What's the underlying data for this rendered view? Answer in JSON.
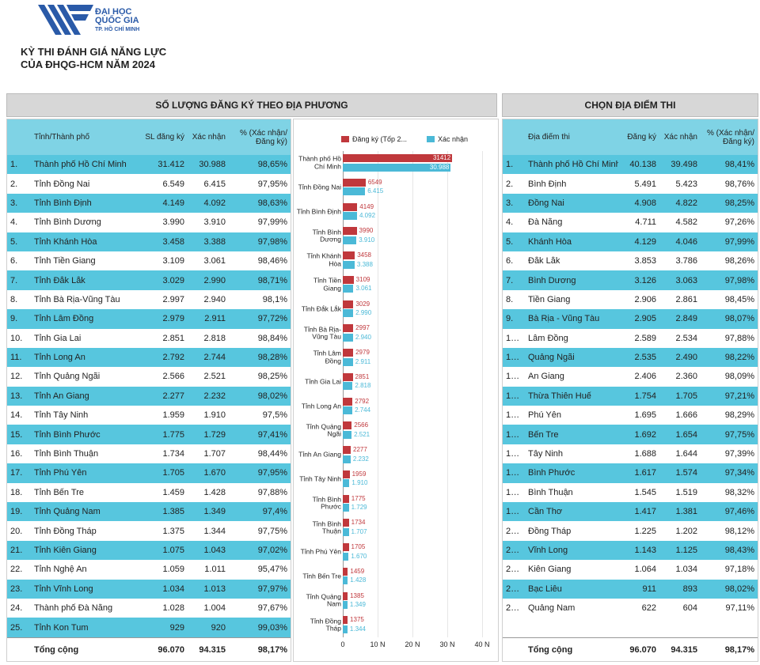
{
  "header": {
    "org_lines": [
      "ĐẠI HỌC",
      "QUỐC GIA",
      "TP. HỒ CHÍ MINH"
    ],
    "title_lines": [
      "KỲ THI ĐÁNH GIÁ NĂNG LỰC",
      "CỦA ĐHQG-HCM NĂM 2024"
    ]
  },
  "left_panel": {
    "title": "SỐ LƯỢNG ĐĂNG KÝ THEO ĐỊA PHƯƠNG",
    "table": {
      "columns": [
        "Tỉnh/Thành phố",
        "SL đăng ký",
        "Xác nhận",
        "% (Xác nhận/ Đăng ký)"
      ],
      "rows": [
        [
          "1.",
          "Thành phố Hồ Chí Minh",
          "31.412",
          "30.988",
          "98,65%"
        ],
        [
          "2.",
          "Tỉnh Đồng Nai",
          "6.549",
          "6.415",
          "97,95%"
        ],
        [
          "3.",
          "Tỉnh Bình Định",
          "4.149",
          "4.092",
          "98,63%"
        ],
        [
          "4.",
          "Tỉnh Bình Dương",
          "3.990",
          "3.910",
          "97,99%"
        ],
        [
          "5.",
          "Tỉnh Khánh Hòa",
          "3.458",
          "3.388",
          "97,98%"
        ],
        [
          "6.",
          "Tỉnh Tiền Giang",
          "3.109",
          "3.061",
          "98,46%"
        ],
        [
          "7.",
          "Tỉnh Đắk Lắk",
          "3.029",
          "2.990",
          "98,71%"
        ],
        [
          "8.",
          "Tỉnh Bà Rịa-Vũng Tàu",
          "2.997",
          "2.940",
          "98,1%"
        ],
        [
          "9.",
          "Tỉnh Lâm Đồng",
          "2.979",
          "2.911",
          "97,72%"
        ],
        [
          "10.",
          "Tỉnh Gia Lai",
          "2.851",
          "2.818",
          "98,84%"
        ],
        [
          "11.",
          "Tỉnh Long An",
          "2.792",
          "2.744",
          "98,28%"
        ],
        [
          "12.",
          "Tỉnh Quảng Ngãi",
          "2.566",
          "2.521",
          "98,25%"
        ],
        [
          "13.",
          "Tỉnh An Giang",
          "2.277",
          "2.232",
          "98,02%"
        ],
        [
          "14.",
          "Tỉnh Tây Ninh",
          "1.959",
          "1.910",
          "97,5%"
        ],
        [
          "15.",
          "Tỉnh Bình Phước",
          "1.775",
          "1.729",
          "97,41%"
        ],
        [
          "16.",
          "Tỉnh Bình Thuận",
          "1.734",
          "1.707",
          "98,44%"
        ],
        [
          "17.",
          "Tỉnh Phú Yên",
          "1.705",
          "1.670",
          "97,95%"
        ],
        [
          "18.",
          "Tỉnh Bến Tre",
          "1.459",
          "1.428",
          "97,88%"
        ],
        [
          "19.",
          "Tỉnh Quảng Nam",
          "1.385",
          "1.349",
          "97,4%"
        ],
        [
          "20.",
          "Tỉnh Đồng Tháp",
          "1.375",
          "1.344",
          "97,75%"
        ],
        [
          "21.",
          "Tỉnh Kiên Giang",
          "1.075",
          "1.043",
          "97,02%"
        ],
        [
          "22.",
          "Tỉnh Nghệ An",
          "1.059",
          "1.011",
          "95,47%"
        ],
        [
          "23.",
          "Tỉnh Vĩnh Long",
          "1.034",
          "1.013",
          "97,97%"
        ],
        [
          "24.",
          "Thành phố Đà Nẵng",
          "1.028",
          "1.004",
          "97,67%"
        ],
        [
          "25.",
          "Tỉnh Kon Tum",
          "929",
          "920",
          "99,03%"
        ]
      ],
      "total": [
        "Tổng cộng",
        "96.070",
        "94.315",
        "98,17%"
      ]
    }
  },
  "chart_data": {
    "type": "bar",
    "orientation": "horizontal",
    "categories": [
      "Thành phố Hồ Chí Minh",
      "Tỉnh Đồng Nai",
      "Tỉnh Bình Định",
      "Tỉnh Bình Dương",
      "Tỉnh Khánh Hòa",
      "Tỉnh Tiền Giang",
      "Tỉnh Đắk Lắk",
      "Tỉnh Bà Rịa-Vũng Tàu",
      "Tỉnh Lâm Đồng",
      "Tỉnh Gia Lai",
      "Tỉnh Long An",
      "Tỉnh Quảng Ngãi",
      "Tỉnh An Giang",
      "Tỉnh Tây Ninh",
      "Tỉnh Bình Phước",
      "Tỉnh Bình Thuận",
      "Tỉnh Phú Yên",
      "Tỉnh Bến Tre",
      "Tỉnh Quảng Nam",
      "Tỉnh Đồng Tháp"
    ],
    "series": [
      {
        "name": "Đăng ký (Tốp 2...",
        "color": "#c0383c",
        "values": [
          31412,
          6549,
          4149,
          3990,
          3458,
          3109,
          3029,
          2997,
          2979,
          2851,
          2792,
          2566,
          2277,
          1959,
          1775,
          1734,
          1705,
          1459,
          1385,
          1375
        ]
      },
      {
        "name": "Xác nhận",
        "color": "#4bb9d7",
        "values": [
          30988,
          6415,
          4092,
          3910,
          3388,
          3061,
          2990,
          2940,
          2911,
          2818,
          2744,
          2521,
          2232,
          1910,
          1729,
          1707,
          1670,
          1428,
          1349,
          1344
        ],
        "value_labels": [
          "30.988",
          "6.415",
          "4.092",
          "3.910",
          "3.388",
          "3.061",
          "2.990",
          "2.940",
          "2.911",
          "2.818",
          "2.744",
          "2.521",
          "2.232",
          "1.910",
          "1.729",
          "1.707",
          "1.670",
          "1.428",
          "1.349",
          "1.344"
        ]
      }
    ],
    "xlim": [
      0,
      40000
    ],
    "xticks": [
      0,
      {
        "value": 10000,
        "label": "10 N"
      },
      {
        "value": 20000,
        "label": "20 N"
      },
      {
        "value": 30000,
        "label": "30 N"
      },
      {
        "value": 40000,
        "label": "40 N"
      }
    ],
    "grid": true,
    "legend": "top"
  },
  "right_panel": {
    "title": "CHỌN ĐỊA ĐIỂM THI",
    "table": {
      "columns": [
        "Địa điểm thi",
        "Đăng ký",
        "Xác nhận",
        "% (Xác nhận/ Đăng ký)"
      ],
      "rows": [
        [
          "1.",
          "Thành phố Hồ Chí Minh",
          "40.138",
          "39.498",
          "98,41%"
        ],
        [
          "2.",
          "Bình Định",
          "5.491",
          "5.423",
          "98,76%"
        ],
        [
          "3.",
          "Đồng Nai",
          "4.908",
          "4.822",
          "98,25%"
        ],
        [
          "4.",
          "Đà Nẵng",
          "4.711",
          "4.582",
          "97,26%"
        ],
        [
          "5.",
          "Khánh Hòa",
          "4.129",
          "4.046",
          "97,99%"
        ],
        [
          "6.",
          "Đắk Lắk",
          "3.853",
          "3.786",
          "98,26%"
        ],
        [
          "7.",
          "Bình Dương",
          "3.126",
          "3.063",
          "97,98%"
        ],
        [
          "8.",
          "Tiền Giang",
          "2.906",
          "2.861",
          "98,45%"
        ],
        [
          "9.",
          "Bà Rịa - Vũng Tàu",
          "2.905",
          "2.849",
          "98,07%"
        ],
        [
          "1…",
          "Lâm Đồng",
          "2.589",
          "2.534",
          "97,88%"
        ],
        [
          "1…",
          "Quảng Ngãi",
          "2.535",
          "2.490",
          "98,22%"
        ],
        [
          "1…",
          "An Giang",
          "2.406",
          "2.360",
          "98,09%"
        ],
        [
          "1…",
          "Thừa Thiên Huế",
          "1.754",
          "1.705",
          "97,21%"
        ],
        [
          "1…",
          "Phú Yên",
          "1.695",
          "1.666",
          "98,29%"
        ],
        [
          "1…",
          "Bến Tre",
          "1.692",
          "1.654",
          "97,75%"
        ],
        [
          "1…",
          "Tây Ninh",
          "1.688",
          "1.644",
          "97,39%"
        ],
        [
          "1…",
          "Bình Phước",
          "1.617",
          "1.574",
          "97,34%"
        ],
        [
          "1…",
          "Bình Thuận",
          "1.545",
          "1.519",
          "98,32%"
        ],
        [
          "1…",
          "Cần Thơ",
          "1.417",
          "1.381",
          "97,46%"
        ],
        [
          "2…",
          "Đồng Tháp",
          "1.225",
          "1.202",
          "98,12%"
        ],
        [
          "2…",
          "Vĩnh Long",
          "1.143",
          "1.125",
          "98,43%"
        ],
        [
          "2…",
          "Kiên Giang",
          "1.064",
          "1.034",
          "97,18%"
        ],
        [
          "2…",
          "Bạc Liêu",
          "911",
          "893",
          "98,02%"
        ],
        [
          "2…",
          "Quảng Nam",
          "622",
          "604",
          "97,11%"
        ]
      ],
      "total": [
        "Tổng cộng",
        "96.070",
        "94.315",
        "98,17%"
      ]
    }
  }
}
